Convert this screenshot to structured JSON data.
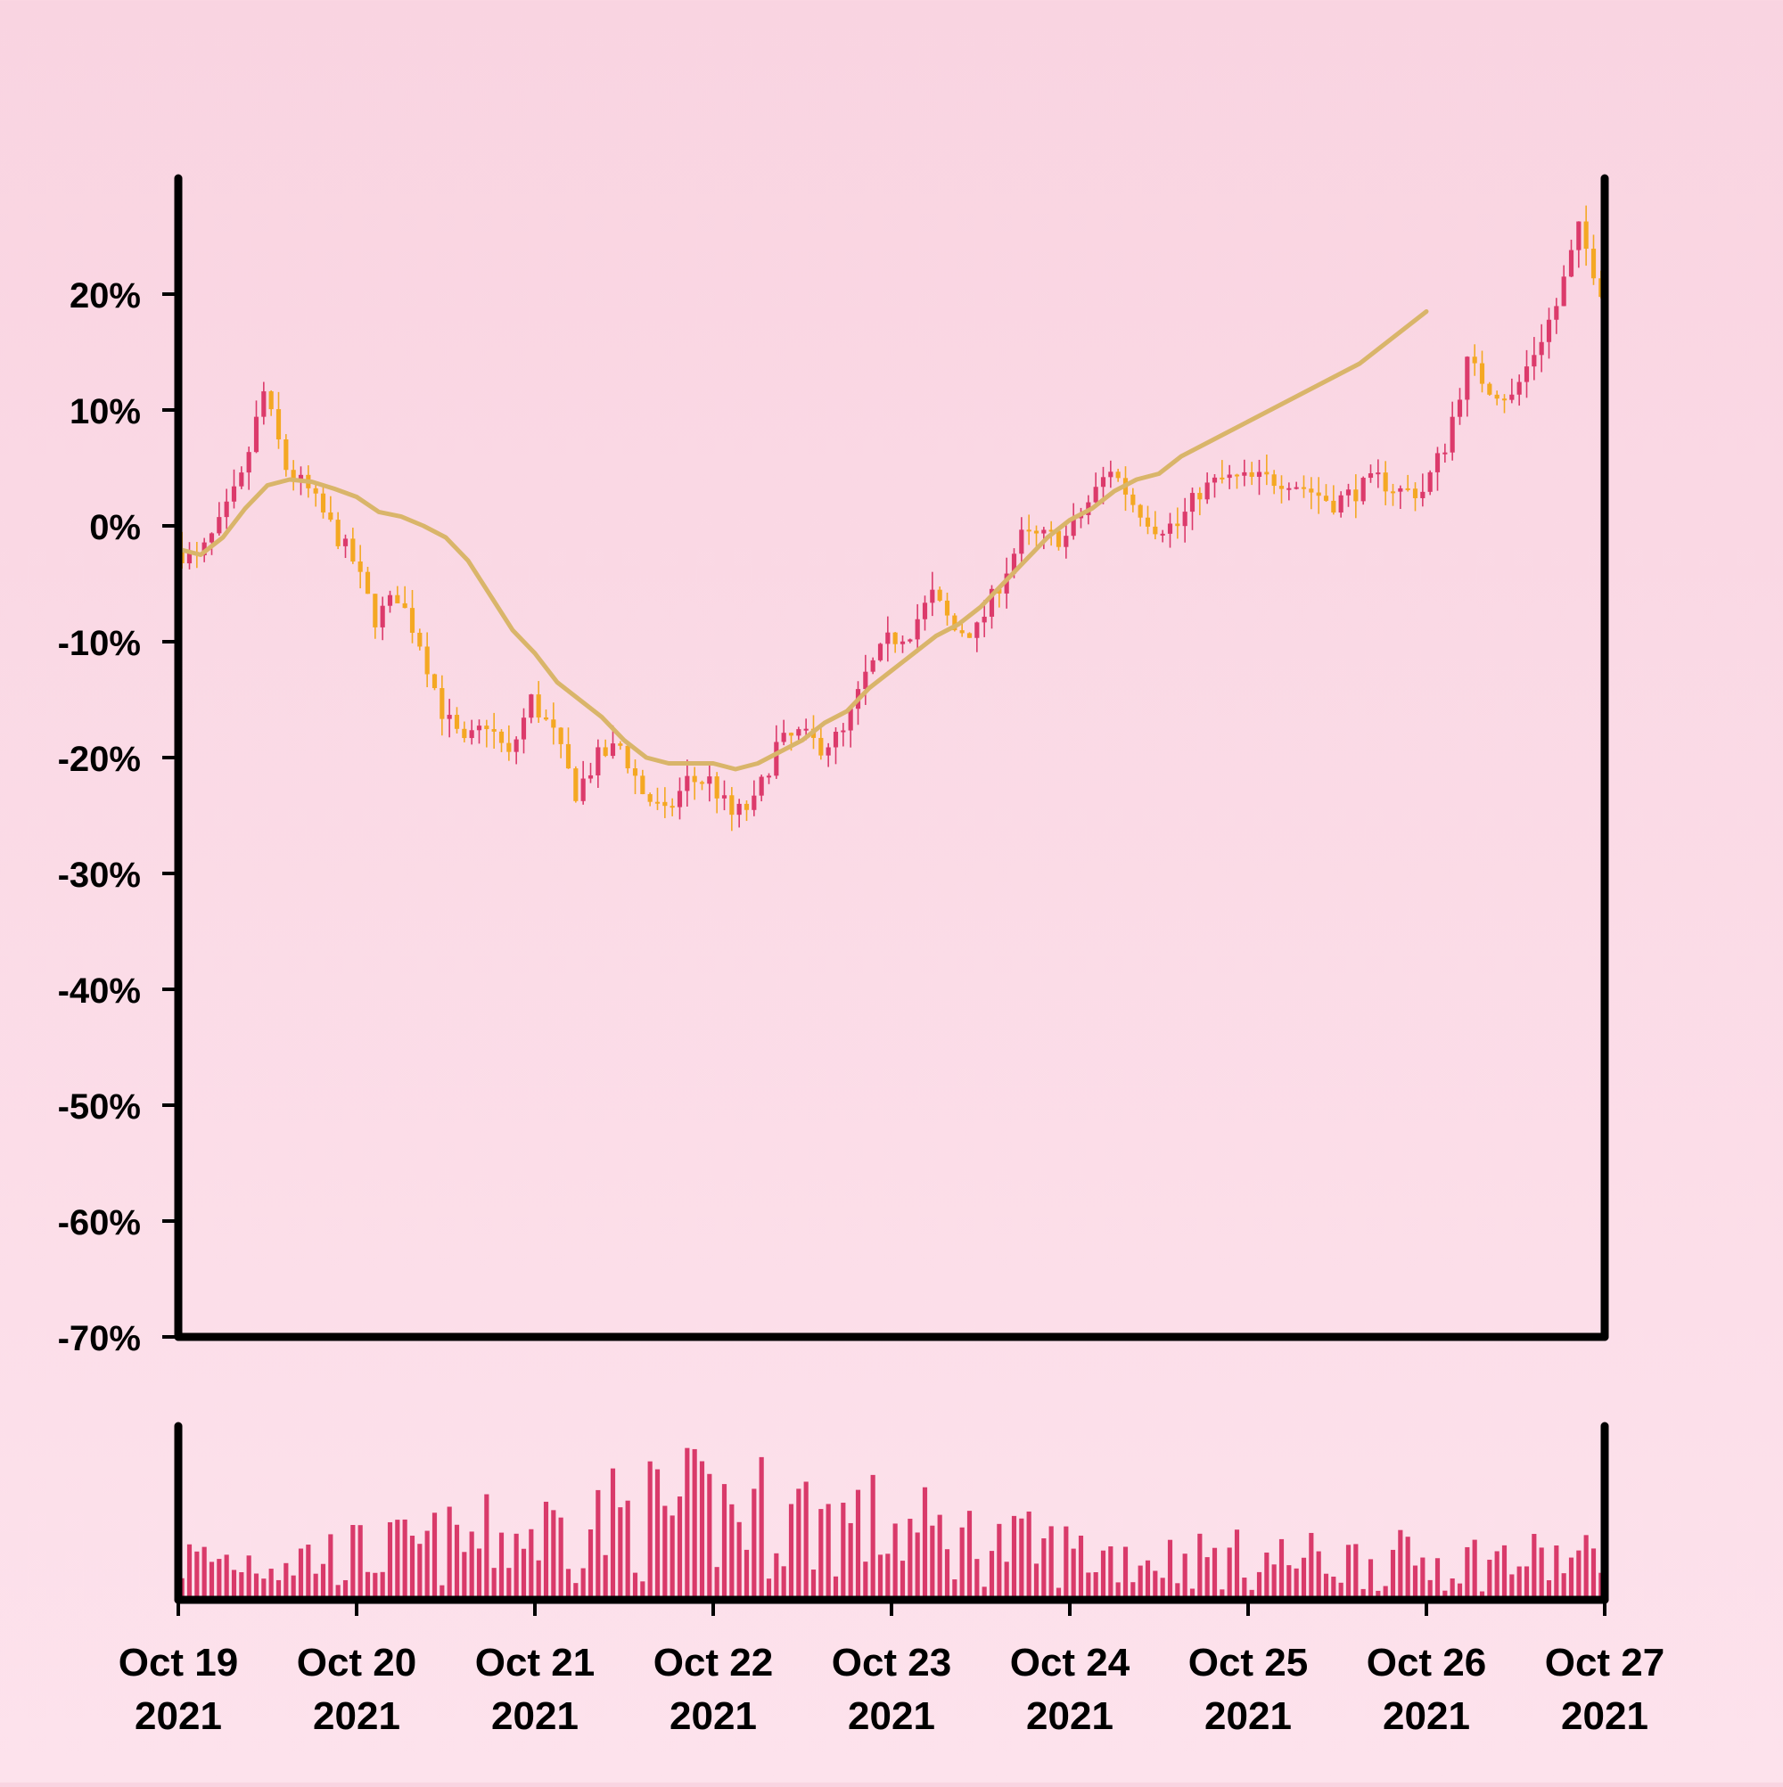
{
  "colors": {
    "up": "#dc3a6b",
    "down": "#f4a823",
    "ma": "#d9b56a",
    "volume": "#d93a6a",
    "axis": "#000000"
  },
  "chart_data": {
    "type": "candlestick",
    "y_axis": {
      "ylim": [
        -70,
        30
      ],
      "ticks": [
        20,
        10,
        0,
        -10,
        -20,
        -30,
        -40,
        -50,
        -60,
        -70
      ],
      "tick_labels": [
        "20%",
        "10%",
        "0%",
        "-10%",
        "-20%",
        "-30%",
        "-40%",
        "-50%",
        "-60%",
        "-70%"
      ]
    },
    "x_axis": {
      "xlim": [
        "2021-10-19",
        "2021-10-27"
      ],
      "ticks": [
        "2021-10-19",
        "2021-10-20",
        "2021-10-21",
        "2021-10-22",
        "2021-10-23",
        "2021-10-24",
        "2021-10-25",
        "2021-10-26",
        "2021-10-27"
      ],
      "tick_labels": [
        [
          "Oct 19",
          "2021"
        ],
        [
          "Oct 20",
          "2021"
        ],
        [
          "Oct 21",
          "2021"
        ],
        [
          "Oct 22",
          "2021"
        ],
        [
          "Oct 23",
          "2021"
        ],
        [
          "Oct 24",
          "2021"
        ],
        [
          "Oct 25",
          "2021"
        ],
        [
          "Oct 26",
          "2021"
        ],
        [
          "Oct 27",
          "2021"
        ]
      ]
    },
    "close_path": [
      [
        "2021-10-19T00:00",
        -2
      ],
      [
        "2021-10-19T03:00",
        -3
      ],
      [
        "2021-10-19T06:00",
        0
      ],
      [
        "2021-10-19T09:00",
        4
      ],
      [
        "2021-10-19T12:00",
        11.5
      ],
      [
        "2021-10-19T15:00",
        5
      ],
      [
        "2021-10-19T18:00",
        3
      ],
      [
        "2021-10-19T21:00",
        0
      ],
      [
        "2021-10-20T00:00",
        -3
      ],
      [
        "2021-10-20T03:00",
        -8
      ],
      [
        "2021-10-20T06:00",
        -6
      ],
      [
        "2021-10-20T09:00",
        -10
      ],
      [
        "2021-10-20T12:00",
        -16
      ],
      [
        "2021-10-20T15:00",
        -19
      ],
      [
        "2021-10-20T18:00",
        -17
      ],
      [
        "2021-10-20T21:00",
        -20
      ],
      [
        "2021-10-21T00:00",
        -15
      ],
      [
        "2021-10-21T03:00",
        -18
      ],
      [
        "2021-10-21T06:00",
        -23
      ],
      [
        "2021-10-21T09:00",
        -20
      ],
      [
        "2021-10-21T12:00",
        -19
      ],
      [
        "2021-10-21T15:00",
        -23
      ],
      [
        "2021-10-21T18:00",
        -25
      ],
      [
        "2021-10-21T21:00",
        -22
      ],
      [
        "2021-10-22T00:00",
        -22
      ],
      [
        "2021-10-22T03:00",
        -25
      ],
      [
        "2021-10-22T06:00",
        -24
      ],
      [
        "2021-10-22T09:00",
        -19
      ],
      [
        "2021-10-22T12:00",
        -18
      ],
      [
        "2021-10-22T15:00",
        -19
      ],
      [
        "2021-10-22T18:00",
        -18
      ],
      [
        "2021-10-22T21:00",
        -13
      ],
      [
        "2021-10-23T00:00",
        -10
      ],
      [
        "2021-10-23T03:00",
        -9
      ],
      [
        "2021-10-23T06:00",
        -6
      ],
      [
        "2021-10-23T09:00",
        -9
      ],
      [
        "2021-10-23T12:00",
        -9
      ],
      [
        "2021-10-23T15:00",
        -5
      ],
      [
        "2021-10-23T18:00",
        -1
      ],
      [
        "2021-10-23T21:00",
        -1
      ],
      [
        "2021-10-24T00:00",
        -1
      ],
      [
        "2021-10-24T03:00",
        2
      ],
      [
        "2021-10-24T06:00",
        5
      ],
      [
        "2021-10-24T09:00",
        2
      ],
      [
        "2021-10-24T12:00",
        0
      ],
      [
        "2021-10-24T15:00",
        0
      ],
      [
        "2021-10-24T18:00",
        3
      ],
      [
        "2021-10-24T21:00",
        4
      ],
      [
        "2021-10-25T00:00",
        4
      ],
      [
        "2021-10-25T03:00",
        4
      ],
      [
        "2021-10-25T06:00",
        4
      ],
      [
        "2021-10-25T09:00",
        3
      ],
      [
        "2021-10-25T12:00",
        2
      ],
      [
        "2021-10-25T15:00",
        3
      ],
      [
        "2021-10-25T18:00",
        4
      ],
      [
        "2021-10-25T21:00",
        3
      ],
      [
        "2021-10-26T00:00",
        3
      ],
      [
        "2021-10-26T03:00",
        7
      ],
      [
        "2021-10-26T06:00",
        14
      ],
      [
        "2021-10-26T09:00",
        12
      ],
      [
        "2021-10-26T12:00",
        11
      ],
      [
        "2021-10-26T15:00",
        15
      ],
      [
        "2021-10-26T18:00",
        19
      ],
      [
        "2021-10-26T21:00",
        25.5
      ],
      [
        "2021-10-27T00:00",
        20.5
      ]
    ],
    "moving_average": [
      [
        "2021-10-19T00:00",
        -2
      ],
      [
        "2021-10-19T03:00",
        -2.5
      ],
      [
        "2021-10-19T06:00",
        -1
      ],
      [
        "2021-10-19T09:00",
        1.5
      ],
      [
        "2021-10-19T12:00",
        3.5
      ],
      [
        "2021-10-19T15:00",
        4
      ],
      [
        "2021-10-19T18:00",
        3.8
      ],
      [
        "2021-10-19T21:00",
        3.2
      ],
      [
        "2021-10-20T00:00",
        2.5
      ],
      [
        "2021-10-20T03:00",
        1.2
      ],
      [
        "2021-10-20T06:00",
        0.8
      ],
      [
        "2021-10-20T09:00",
        0
      ],
      [
        "2021-10-20T12:00",
        -1
      ],
      [
        "2021-10-20T15:00",
        -3
      ],
      [
        "2021-10-20T18:00",
        -6
      ],
      [
        "2021-10-20T21:00",
        -9
      ],
      [
        "2021-10-21T00:00",
        -11
      ],
      [
        "2021-10-21T03:00",
        -13.5
      ],
      [
        "2021-10-21T06:00",
        -15
      ],
      [
        "2021-10-21T09:00",
        -16.5
      ],
      [
        "2021-10-21T12:00",
        -18.5
      ],
      [
        "2021-10-21T15:00",
        -20
      ],
      [
        "2021-10-21T18:00",
        -20.5
      ],
      [
        "2021-10-21T21:00",
        -20.5
      ],
      [
        "2021-10-22T00:00",
        -20.5
      ],
      [
        "2021-10-22T03:00",
        -21
      ],
      [
        "2021-10-22T06:00",
        -20.5
      ],
      [
        "2021-10-22T09:00",
        -19.5
      ],
      [
        "2021-10-22T12:00",
        -18.5
      ],
      [
        "2021-10-22T15:00",
        -17
      ],
      [
        "2021-10-22T18:00",
        -16
      ],
      [
        "2021-10-22T21:00",
        -14
      ],
      [
        "2021-10-23T00:00",
        -12.5
      ],
      [
        "2021-10-23T03:00",
        -11
      ],
      [
        "2021-10-23T06:00",
        -9.5
      ],
      [
        "2021-10-23T09:00",
        -8.5
      ],
      [
        "2021-10-23T12:00",
        -7
      ],
      [
        "2021-10-23T15:00",
        -5
      ],
      [
        "2021-10-23T18:00",
        -3
      ],
      [
        "2021-10-23T21:00",
        -1
      ],
      [
        "2021-10-24T00:00",
        0.5
      ],
      [
        "2021-10-24T03:00",
        1.5
      ],
      [
        "2021-10-24T06:00",
        3
      ],
      [
        "2021-10-24T09:00",
        4
      ],
      [
        "2021-10-24T12:00",
        4.5
      ],
      [
        "2021-10-24T15:00",
        6
      ],
      [
        "2021-10-24T18:00",
        7
      ],
      [
        "2021-10-24T21:00",
        8
      ],
      [
        "2021-10-25T00:00",
        9
      ],
      [
        "2021-10-25T03:00",
        10
      ],
      [
        "2021-10-25T06:00",
        11
      ],
      [
        "2021-10-25T09:00",
        12
      ],
      [
        "2021-10-25T12:00",
        13
      ],
      [
        "2021-10-25T15:00",
        14
      ],
      [
        "2021-10-25T18:00",
        15.5
      ],
      [
        "2021-10-25T21:00",
        17
      ],
      [
        "2021-10-26T00:00",
        18.5
      ]
    ],
    "ma_note_units": "percent",
    "volume_ylim": [
      0,
      140
    ]
  }
}
